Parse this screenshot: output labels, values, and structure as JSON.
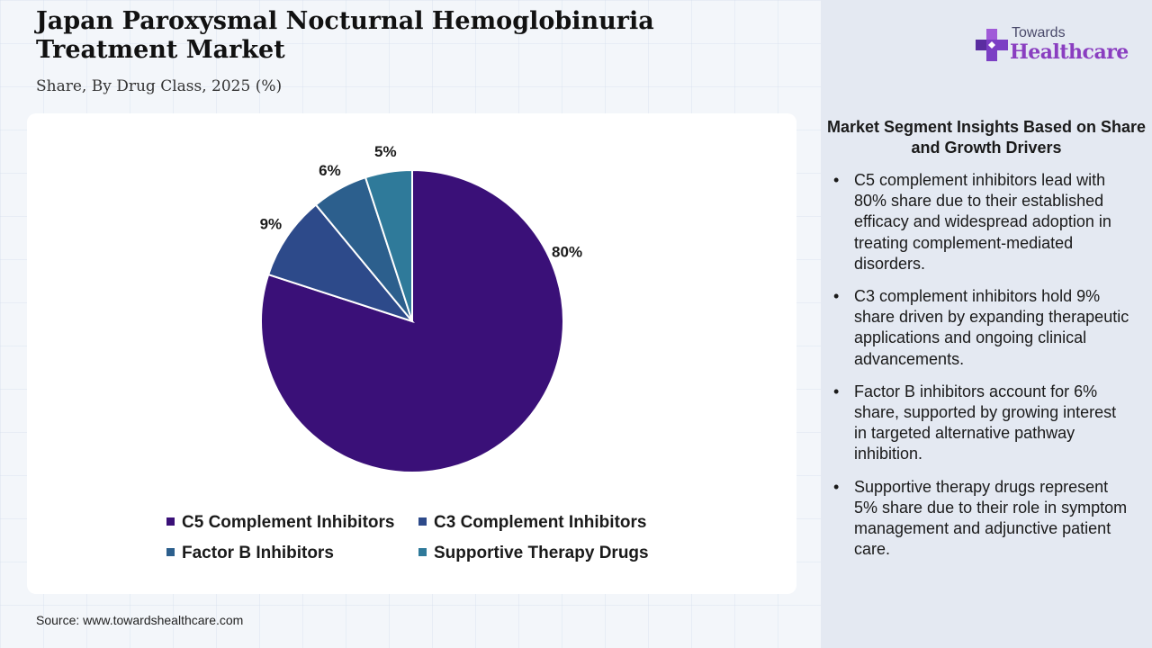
{
  "header": {
    "title": "Japan Paroxysmal Nocturnal Hemoglobinuria Treatment Market",
    "subtitle": "Share, By Drug Class, 2025 (%)"
  },
  "logo": {
    "line1": "Towards",
    "line2": "Healthcare",
    "icon": "plus-cross-icon"
  },
  "chart_data": {
    "type": "pie",
    "categories": [
      "C5 Complement Inhibitors",
      "C3 Complement Inhibitors",
      "Factor B Inhibitors",
      "Supportive Therapy Drugs"
    ],
    "values": [
      80,
      9,
      6,
      5
    ],
    "data_labels": [
      "80%",
      "9%",
      "6%",
      "5%"
    ],
    "colors": [
      "#3a1078",
      "#2d4a8a",
      "#2c5f8d",
      "#2f7a9a"
    ],
    "legend_position": "bottom",
    "title": "",
    "xlabel": "",
    "ylabel": ""
  },
  "source": "Source: www.towardshealthcare.com",
  "insights": {
    "title": "Market Segment Insights Based on Share and Growth Drivers",
    "items": [
      "C5 complement inhibitors lead with 80% share due to their established efficacy and widespread adoption in treating complement-mediated disorders.",
      "C3 complement inhibitors hold 9% share driven by expanding therapeutic applications and ongoing clinical advancements.",
      "Factor B inhibitors account for 6% share, supported by growing interest in targeted alternative pathway inhibition.",
      "Supportive therapy drugs represent 5% share due to their role in symptom management and adjunctive patient care."
    ]
  }
}
